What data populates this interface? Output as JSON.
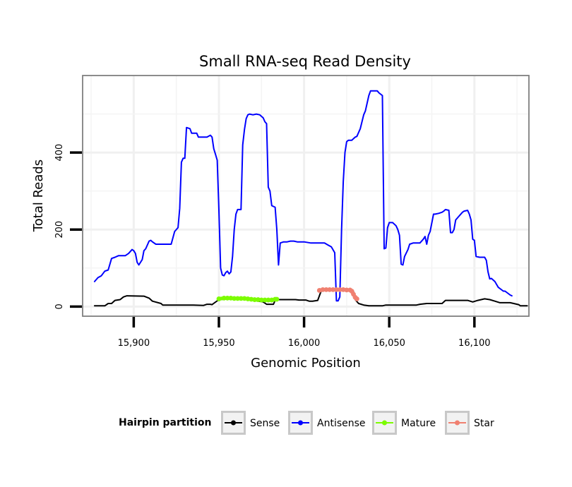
{
  "chart_data": {
    "type": "line",
    "title": "Small RNA-seq Read Density",
    "xlabel": "Genomic Position",
    "ylabel": "Total Reads",
    "xlim": [
      15870,
      16132
    ],
    "ylim": [
      -25,
      600
    ],
    "grid": true,
    "x_ticks": [
      15900,
      15950,
      16000,
      16050,
      16100
    ],
    "x_tick_labels": [
      "15,900",
      "15,950",
      "16,000",
      "16,050",
      "16,100"
    ],
    "y_ticks": [
      0,
      200,
      400
    ],
    "y_tick_labels": [
      "0",
      "200",
      "400"
    ],
    "legend": {
      "title": "Hairpin partition",
      "position": "bottom",
      "entries": [
        "Sense",
        "Antisense",
        "Mature",
        "Star"
      ]
    },
    "series": [
      {
        "name": "Antisense",
        "color": "#0000ff",
        "points": [
          [
            15877,
            65
          ],
          [
            15879,
            75
          ],
          [
            15881,
            80
          ],
          [
            15883,
            92
          ],
          [
            15885,
            95
          ],
          [
            15887,
            125
          ],
          [
            15889,
            128
          ],
          [
            15891,
            132
          ],
          [
            15895,
            132
          ],
          [
            15897,
            138
          ],
          [
            15899,
            148
          ],
          [
            15900,
            145
          ],
          [
            15901,
            138
          ],
          [
            15902,
            115
          ],
          [
            15903,
            108
          ],
          [
            15905,
            122
          ],
          [
            15906,
            145
          ],
          [
            15907,
            150
          ],
          [
            15908,
            160
          ],
          [
            15909,
            170
          ],
          [
            15910,
            172
          ],
          [
            15911,
            168
          ],
          [
            15913,
            162
          ],
          [
            15915,
            162
          ],
          [
            15919,
            162
          ],
          [
            15922,
            162
          ],
          [
            15924,
            195
          ],
          [
            15926,
            205
          ],
          [
            15927,
            255
          ],
          [
            15928,
            375
          ],
          [
            15929,
            385
          ],
          [
            15930,
            385
          ],
          [
            15931,
            465
          ],
          [
            15933,
            462
          ],
          [
            15934,
            450
          ],
          [
            15937,
            450
          ],
          [
            15938,
            440
          ],
          [
            15941,
            440
          ],
          [
            15943,
            440
          ],
          [
            15945,
            445
          ],
          [
            15946,
            440
          ],
          [
            15947,
            410
          ],
          [
            15948,
            395
          ],
          [
            15949,
            380
          ],
          [
            15950,
            250
          ],
          [
            15951,
            100
          ],
          [
            15952,
            82
          ],
          [
            15953,
            80
          ],
          [
            15954,
            88
          ],
          [
            15955,
            92
          ],
          [
            15956,
            85
          ],
          [
            15957,
            90
          ],
          [
            15958,
            130
          ],
          [
            15959,
            200
          ],
          [
            15960,
            240
          ],
          [
            15961,
            252
          ],
          [
            15963,
            252
          ],
          [
            15964,
            420
          ],
          [
            15965,
            460
          ],
          [
            15966,
            488
          ],
          [
            15967,
            498
          ],
          [
            15968,
            500
          ],
          [
            15970,
            498
          ],
          [
            15972,
            500
          ],
          [
            15974,
            498
          ],
          [
            15976,
            490
          ],
          [
            15977,
            480
          ],
          [
            15978,
            475
          ],
          [
            15979,
            310
          ],
          [
            15980,
            300
          ],
          [
            15981,
            262
          ],
          [
            15982,
            260
          ],
          [
            15983,
            258
          ],
          [
            15984,
            200
          ],
          [
            15985,
            108
          ],
          [
            15986,
            165
          ],
          [
            15988,
            168
          ],
          [
            15990,
            168
          ],
          [
            15992,
            170
          ],
          [
            15994,
            170
          ],
          [
            15996,
            168
          ],
          [
            16000,
            168
          ],
          [
            16004,
            165
          ],
          [
            16006,
            165
          ],
          [
            16008,
            165
          ],
          [
            16010,
            165
          ],
          [
            16012,
            165
          ],
          [
            16014,
            160
          ],
          [
            16016,
            155
          ],
          [
            16018,
            140
          ],
          [
            16019,
            15
          ],
          [
            16020,
            15
          ],
          [
            16021,
            25
          ],
          [
            16022,
            200
          ],
          [
            16023,
            325
          ],
          [
            16024,
            400
          ],
          [
            16025,
            428
          ],
          [
            16026,
            432
          ],
          [
            16028,
            432
          ],
          [
            16030,
            440
          ],
          [
            16031,
            442
          ],
          [
            16033,
            462
          ],
          [
            16035,
            498
          ],
          [
            16036,
            508
          ],
          [
            16038,
            548
          ],
          [
            16039,
            560
          ],
          [
            16041,
            560
          ],
          [
            16043,
            560
          ],
          [
            16044,
            555
          ],
          [
            16046,
            548
          ],
          [
            16047,
            150
          ],
          [
            16048,
            152
          ],
          [
            16049,
            205
          ],
          [
            16050,
            218
          ],
          [
            16052,
            218
          ],
          [
            16054,
            210
          ],
          [
            16055,
            200
          ],
          [
            16056,
            185
          ],
          [
            16057,
            110
          ],
          [
            16058,
            108
          ],
          [
            16059,
            130
          ],
          [
            16061,
            148
          ],
          [
            16062,
            162
          ],
          [
            16064,
            165
          ],
          [
            16068,
            165
          ],
          [
            16070,
            175
          ],
          [
            16071,
            182
          ],
          [
            16072,
            162
          ],
          [
            16073,
            185
          ],
          [
            16074,
            195
          ],
          [
            16076,
            240
          ],
          [
            16077,
            240
          ],
          [
            16079,
            242
          ],
          [
            16081,
            245
          ],
          [
            16082,
            248
          ],
          [
            16083,
            252
          ],
          [
            16085,
            250
          ],
          [
            16086,
            192
          ],
          [
            16087,
            192
          ],
          [
            16088,
            200
          ],
          [
            16089,
            225
          ],
          [
            16091,
            235
          ],
          [
            16093,
            245
          ],
          [
            16094,
            248
          ],
          [
            16096,
            250
          ],
          [
            16097,
            240
          ],
          [
            16098,
            225
          ],
          [
            16099,
            175
          ],
          [
            16100,
            172
          ],
          [
            16101,
            130
          ],
          [
            16103,
            128
          ],
          [
            16106,
            128
          ],
          [
            16107,
            120
          ],
          [
            16108,
            90
          ],
          [
            16109,
            72
          ],
          [
            16110,
            73
          ],
          [
            16112,
            65
          ],
          [
            16114,
            50
          ],
          [
            16117,
            40
          ],
          [
            16118,
            40
          ],
          [
            16121,
            30
          ],
          [
            16122,
            28
          ]
        ]
      },
      {
        "name": "Sense",
        "color": "#000000",
        "points": [
          [
            15877,
            2
          ],
          [
            15883,
            2
          ],
          [
            15885,
            8
          ],
          [
            15887,
            8
          ],
          [
            15889,
            16
          ],
          [
            15892,
            18
          ],
          [
            15894,
            25
          ],
          [
            15896,
            28
          ],
          [
            15906,
            27
          ],
          [
            15909,
            22
          ],
          [
            15911,
            14
          ],
          [
            15916,
            8
          ],
          [
            15917,
            4
          ],
          [
            15935,
            4
          ],
          [
            15941,
            3
          ],
          [
            15943,
            6
          ],
          [
            15945,
            6
          ],
          [
            15946,
            5
          ],
          [
            15950,
            18
          ],
          [
            15957,
            20
          ],
          [
            15963,
            20
          ],
          [
            15968,
            18
          ],
          [
            15976,
            12
          ],
          [
            15978,
            6
          ],
          [
            15982,
            6
          ],
          [
            15983,
            16
          ],
          [
            15985,
            18
          ],
          [
            15990,
            18
          ],
          [
            15995,
            18
          ],
          [
            15997,
            17
          ],
          [
            16001,
            17
          ],
          [
            16003,
            14
          ],
          [
            16005,
            14
          ],
          [
            16008,
            16
          ],
          [
            16010,
            40
          ],
          [
            16015,
            44
          ],
          [
            16023,
            44
          ],
          [
            16027,
            42
          ],
          [
            16029,
            40
          ],
          [
            16030,
            18
          ],
          [
            16032,
            8
          ],
          [
            16035,
            4
          ],
          [
            16038,
            2
          ],
          [
            16046,
            2
          ],
          [
            16048,
            4
          ],
          [
            16055,
            4
          ],
          [
            16066,
            4
          ],
          [
            16068,
            6
          ],
          [
            16072,
            8
          ],
          [
            16081,
            8
          ],
          [
            16083,
            16
          ],
          [
            16096,
            16
          ],
          [
            16099,
            12
          ],
          [
            16102,
            16
          ],
          [
            16106,
            20
          ],
          [
            16109,
            18
          ],
          [
            16112,
            14
          ],
          [
            16115,
            10
          ],
          [
            16121,
            10
          ],
          [
            16126,
            5
          ],
          [
            16127,
            2
          ],
          [
            16131,
            2
          ]
        ]
      },
      {
        "name": "Mature",
        "color": "#7cfc00",
        "points": [
          [
            15950,
            20
          ],
          [
            15953,
            22
          ],
          [
            15955,
            22
          ],
          [
            15957,
            22
          ],
          [
            15959,
            21
          ],
          [
            15961,
            21
          ],
          [
            15963,
            21
          ],
          [
            15965,
            21
          ],
          [
            15967,
            20
          ],
          [
            15969,
            19
          ],
          [
            15971,
            18
          ],
          [
            15973,
            18
          ],
          [
            15975,
            17
          ],
          [
            15977,
            17
          ],
          [
            15979,
            17
          ],
          [
            15981,
            17
          ],
          [
            15983,
            19
          ],
          [
            15984,
            19
          ]
        ]
      },
      {
        "name": "Star",
        "color": "#f08070",
        "points": [
          [
            16009,
            42
          ],
          [
            16011,
            44
          ],
          [
            16013,
            44
          ],
          [
            16015,
            44
          ],
          [
            16017,
            44
          ],
          [
            16019,
            44
          ],
          [
            16021,
            44
          ],
          [
            16023,
            44
          ],
          [
            16025,
            43
          ],
          [
            16027,
            43
          ],
          [
            16028,
            40
          ],
          [
            16029,
            32
          ],
          [
            16030,
            24
          ],
          [
            16031,
            20
          ]
        ]
      }
    ]
  }
}
